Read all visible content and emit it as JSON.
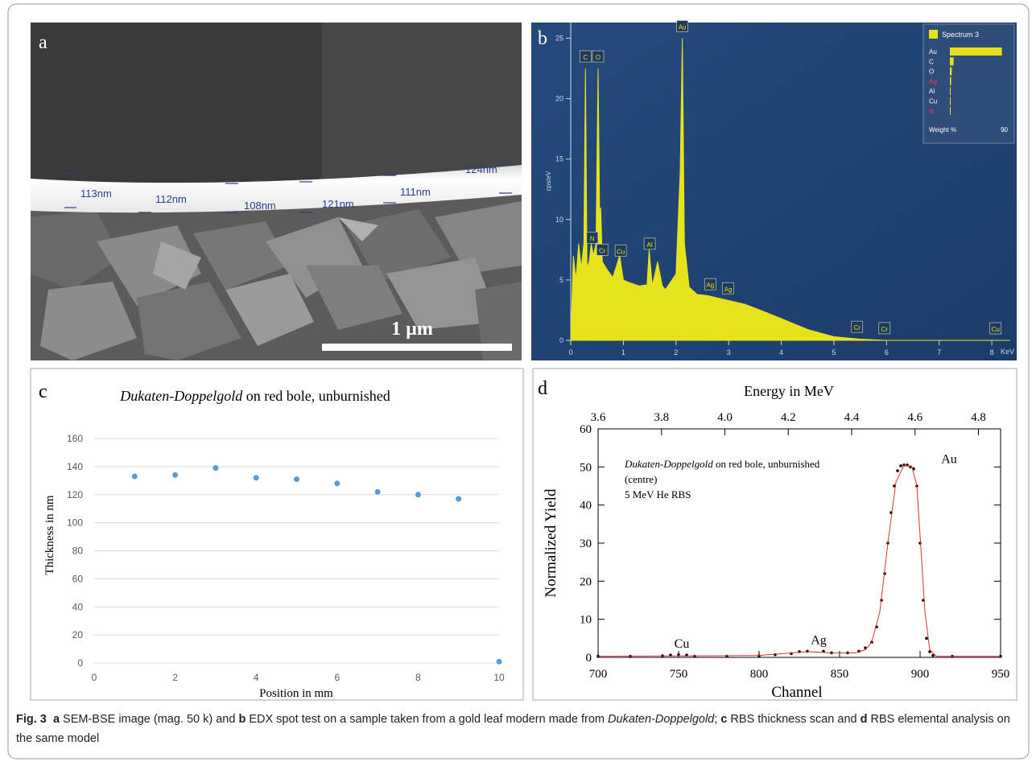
{
  "panel_a": {
    "label": "a",
    "scale_bar": "1 µm",
    "measurements": [
      "113nm",
      "112nm",
      "108nm",
      "121nm",
      "111nm",
      "124nm"
    ]
  },
  "panel_b": {
    "label": "b",
    "chart_data": {
      "type": "area",
      "y_label": "cps/eV",
      "x_unit": "KeV",
      "color": "#e6e21c",
      "x": [
        0,
        0.05,
        0.1,
        0.15,
        0.2,
        0.25,
        0.28,
        0.31,
        0.35,
        0.39,
        0.43,
        0.48,
        0.52,
        0.55,
        0.57,
        0.6,
        0.7,
        0.8,
        0.93,
        1.0,
        1.1,
        1.3,
        1.45,
        1.49,
        1.55,
        1.65,
        1.74,
        1.8,
        2.0,
        2.08,
        2.12,
        2.16,
        2.25,
        2.4,
        2.6,
        2.8,
        3.0,
        3.3,
        3.6,
        4.0,
        4.5,
        5.0,
        5.5,
        6.0,
        8.35
      ],
      "values": [
        0,
        7,
        5,
        8,
        6,
        8,
        22.5,
        6,
        6.5,
        8,
        7,
        8,
        22.5,
        10,
        11,
        6.5,
        5.8,
        5.2,
        7,
        5,
        4.8,
        4.5,
        4.6,
        7.5,
        4.5,
        6.5,
        4.5,
        4.2,
        5.5,
        14,
        25,
        8,
        4.4,
        3.8,
        3.7,
        3.5,
        3.3,
        3.0,
        2.5,
        1.8,
        0.9,
        0.3,
        0.1,
        0,
        0
      ],
      "xlim": [
        0,
        8.35
      ],
      "ylim": [
        0,
        26.3
      ],
      "xticks": [
        0,
        1,
        2,
        3,
        4,
        5,
        6,
        7,
        8
      ],
      "yticks": [
        0,
        5,
        10,
        15,
        20,
        25
      ],
      "peaks": {
        "labels": [
          "C",
          "O",
          "Au",
          "Cr",
          "N",
          "Cu",
          "Al",
          "Ag",
          "Ag",
          "Cr",
          "Cr",
          "Cu"
        ],
        "energies": [
          0.28,
          0.52,
          2.12,
          0.6,
          0.41,
          0.95,
          1.5,
          2.65,
          2.99,
          5.44,
          5.96,
          8.07
        ]
      },
      "legend": {
        "title": "Spectrum 3",
        "names": [
          "Au",
          "C",
          "O",
          "Ag",
          "Al",
          "Cu",
          "N"
        ],
        "values": [
          83,
          6,
          3,
          2,
          1,
          1,
          0.5
        ],
        "name_colors": [
          "#ffffff",
          "#ffffff",
          "#ffffff",
          "#ff4040",
          "#ffffff",
          "#ffffff",
          "#ff4040"
        ],
        "x_label": "Weight %",
        "x_max": 90
      }
    }
  },
  "panel_c": {
    "label": "c",
    "chart_data": {
      "type": "scatter",
      "title": {
        "italic": "Dukaten-Doppelgold",
        "rest": "on red bole, unburnished"
      },
      "x_label": "Position in mm",
      "y_label": "Thickness in nm",
      "x": [
        1,
        2,
        3,
        4,
        5,
        6,
        7,
        8,
        9,
        10
      ],
      "values": [
        133,
        134,
        139,
        132,
        131,
        128,
        122,
        120,
        117,
        1
      ],
      "color": "#5b9bd5",
      "xlim": [
        0,
        10
      ],
      "ylim": [
        0,
        160
      ],
      "xticks": [
        0,
        2,
        4,
        6,
        8,
        10
      ],
      "yticks": [
        0,
        20,
        40,
        60,
        80,
        100,
        120,
        140,
        160
      ],
      "grid": true
    }
  },
  "panel_d": {
    "label": "d",
    "chart_data": {
      "type": "line",
      "x_label": "Channel",
      "y_label": "Normalized Yield",
      "x2_label": "Energy in MeV",
      "xlim": [
        700,
        950
      ],
      "xticks": [
        700,
        750,
        800,
        850,
        900,
        950
      ],
      "ylim": [
        0,
        60
      ],
      "yticks": [
        0,
        10,
        20,
        30,
        40,
        50,
        60
      ],
      "x2lim": [
        3.6,
        4.87
      ],
      "x2ticks": [
        3.6,
        3.8,
        {
          "value": 4,
          "label": "4.0"
        },
        4.2,
        4.4,
        4.6,
        4.8
      ],
      "series": [
        {
          "style": "dots",
          "color": "#000000",
          "x": [
            700,
            720,
            740,
            745,
            750,
            755,
            760,
            780,
            800,
            810,
            820,
            825,
            830,
            840,
            845,
            855,
            862,
            866,
            870,
            873,
            876,
            878,
            880,
            882,
            884,
            886,
            888,
            890,
            892,
            894,
            896,
            898,
            900,
            902,
            904,
            906,
            908,
            920,
            950
          ],
          "values": [
            0.3,
            0.3,
            0.4,
            0.6,
            0.7,
            0.6,
            0.3,
            0.3,
            0.4,
            0.7,
            1.0,
            1.5,
            1.6,
            1.6,
            1.2,
            1.2,
            1.6,
            2.5,
            4,
            8,
            15,
            22,
            30,
            38,
            45,
            49,
            50.3,
            50.5,
            50.5,
            50,
            49.5,
            45,
            30,
            15,
            5,
            1.5,
            0.5,
            0.3,
            0.3
          ]
        },
        {
          "style": "line",
          "color": "#e03030",
          "x": [
            700,
            760,
            800,
            830,
            845,
            860,
            866,
            870,
            875,
            880,
            885,
            890,
            895,
            898,
            900,
            903,
            906,
            910,
            950
          ],
          "values": [
            0.3,
            0.4,
            0.5,
            1.5,
            1.2,
            1.2,
            2,
            4,
            12,
            30,
            46,
            50.5,
            50,
            45,
            32,
            12,
            2,
            0.3,
            0.3
          ]
        }
      ],
      "annotations": [
        {
          "text": "Cu",
          "x": 752,
          "y": 2.5
        },
        {
          "text": "Ag",
          "x": 837,
          "y": 3.5
        },
        {
          "text": "Au",
          "x": 918,
          "y": 51
        }
      ],
      "note": {
        "italic": "Dukaten-Doppelgold",
        "rest": "on red bole, unburnished",
        "lines": [
          "(centre)",
          "5 MeV He RBS"
        ]
      }
    }
  },
  "caption": {
    "parts": [
      "Fig. 3",
      "a",
      "SEM-BSE image (mag. 50 k) and",
      "b",
      "EDX spot test on a sample taken from a gold leaf modern made from",
      "Dukaten-Doppelgold",
      ";",
      "c",
      "RBS thickness scan and",
      "d",
      "RBS elemental analysis on the same model"
    ]
  }
}
